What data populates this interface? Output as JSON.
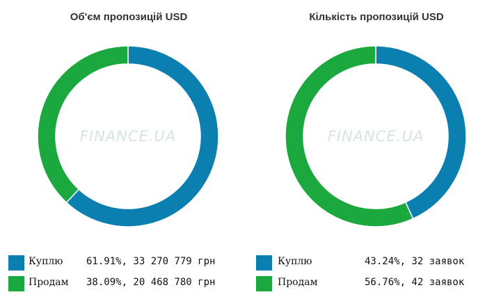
{
  "colors": {
    "buy": "#0a7fb0",
    "sell": "#1aa83f"
  },
  "watermark": "FINANCE.UA",
  "chart_data": [
    {
      "type": "pie",
      "title": "Об'єм пропозицій USD",
      "categories": [
        "Куплю",
        "Продам"
      ],
      "values": [
        61.91,
        38.09
      ],
      "legend": [
        {
          "label": "Куплю",
          "text": "61.91%, 33 270 779 грн"
        },
        {
          "label": "Продам",
          "text": "38.09%, 20 468 780 грн"
        }
      ]
    },
    {
      "type": "pie",
      "title": "Кількість пропозицій USD",
      "categories": [
        "Куплю",
        "Продам"
      ],
      "values": [
        43.24,
        56.76
      ],
      "legend": [
        {
          "label": "Куплю",
          "text": "43.24%, 32 заявок"
        },
        {
          "label": "Продам",
          "text": "56.76%, 42 заявок"
        }
      ]
    }
  ]
}
